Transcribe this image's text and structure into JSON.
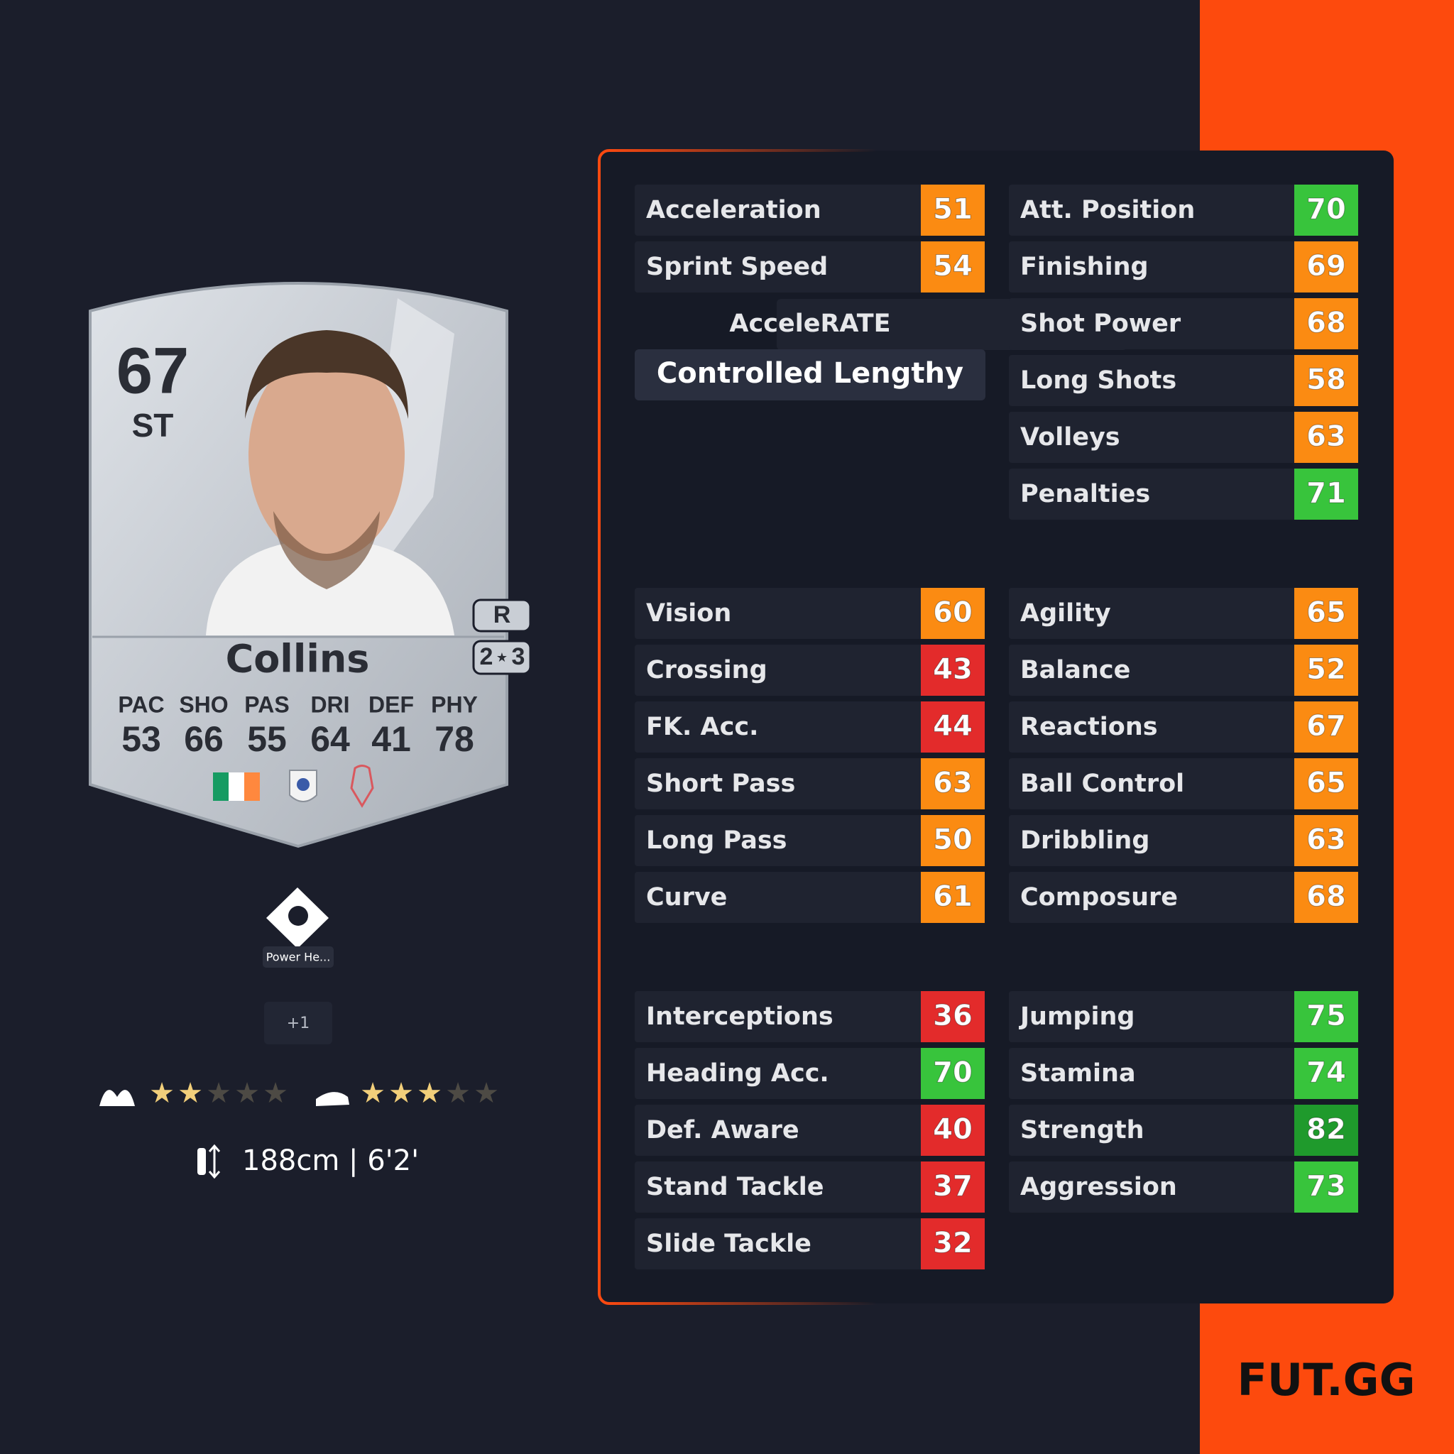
{
  "card": {
    "rating": "67",
    "position": "ST",
    "name": "Collins",
    "foot": "R",
    "skill_moves": 2,
    "weak_foot": 3,
    "face_stats": [
      {
        "label": "PAC",
        "value": 53
      },
      {
        "label": "SHO",
        "value": 66
      },
      {
        "label": "PAS",
        "value": 55
      },
      {
        "label": "DRI",
        "value": 64
      },
      {
        "label": "DEF",
        "value": 41
      },
      {
        "label": "PHY",
        "value": 78
      }
    ]
  },
  "playstyle": "Power He...",
  "playstyles_extra": "+1",
  "height": "188cm | 6'2'",
  "accelerate": {
    "label": "AcceleRATE",
    "type": "Controlled Lengthy"
  },
  "sections": [
    {
      "left": [
        {
          "name": "Acceleration",
          "value": 51
        },
        {
          "name": "Sprint Speed",
          "value": 54
        }
      ],
      "right": [
        {
          "name": "Att. Position",
          "value": 70
        },
        {
          "name": "Finishing",
          "value": 69
        },
        {
          "name": "Shot Power",
          "value": 68
        },
        {
          "name": "Long Shots",
          "value": 58
        },
        {
          "name": "Volleys",
          "value": 63
        },
        {
          "name": "Penalties",
          "value": 71
        }
      ]
    },
    {
      "left": [
        {
          "name": "Vision",
          "value": 60
        },
        {
          "name": "Crossing",
          "value": 43
        },
        {
          "name": "FK. Acc.",
          "value": 44
        },
        {
          "name": "Short Pass",
          "value": 63
        },
        {
          "name": "Long Pass",
          "value": 50
        },
        {
          "name": "Curve",
          "value": 61
        }
      ],
      "right": [
        {
          "name": "Agility",
          "value": 65
        },
        {
          "name": "Balance",
          "value": 52
        },
        {
          "name": "Reactions",
          "value": 67
        },
        {
          "name": "Ball Control",
          "value": 65
        },
        {
          "name": "Dribbling",
          "value": 63
        },
        {
          "name": "Composure",
          "value": 68
        }
      ]
    },
    {
      "left": [
        {
          "name": "Interceptions",
          "value": 36
        },
        {
          "name": "Heading Acc.",
          "value": 70
        },
        {
          "name": "Def. Aware",
          "value": 40
        },
        {
          "name": "Stand Tackle",
          "value": 37
        },
        {
          "name": "Slide Tackle",
          "value": 32
        }
      ],
      "right": [
        {
          "name": "Jumping",
          "value": 75
        },
        {
          "name": "Stamina",
          "value": 74
        },
        {
          "name": "Strength",
          "value": 82
        },
        {
          "name": "Aggression",
          "value": 73
        }
      ]
    }
  ],
  "logo": "FUT.GG"
}
